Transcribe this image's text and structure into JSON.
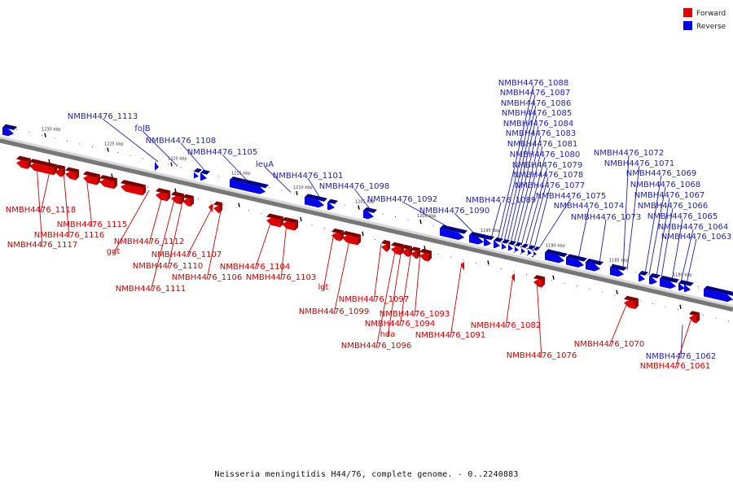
{
  "caption": "Neisseria meningitidis H44/76, complete genome. - 0..2240883",
  "colors": {
    "forward": "#e00000",
    "reverse": "#0000ee",
    "forward_text": "#cc0000",
    "reverse_text": "#1f1fb0"
  },
  "legend": {
    "forward": "Forward",
    "reverse": "Reverse"
  },
  "ticks": [
    {
      "label": "1230 kbp"
    },
    {
      "label": "1225 kbp"
    },
    {
      "label": "1220 kbp"
    },
    {
      "label": "1215 kbp"
    },
    {
      "label": "1210 kbp"
    },
    {
      "label": "1205 kbp"
    },
    {
      "label": "1200 kbp"
    },
    {
      "label": "1195 kbp"
    },
    {
      "label": "1190 kbp"
    },
    {
      "label": "1185 kbp"
    },
    {
      "label": "1180 kbp"
    }
  ],
  "reverse_genes": [
    "NMBH4476_1113",
    "folB",
    "NMBH4476_1108",
    "NMBH4476_1105",
    "leuA",
    "NMBH4476_1101",
    "NMBH4476_1098",
    "NMBH4476_1092",
    "NMBH4476_1090",
    "NMBH4476_1089",
    "NMBH4476_1088",
    "NMBH4476_1087",
    "NMBH4476_1086",
    "NMBH4476_1085",
    "NMBH4476_1084",
    "NMBH4476_1083",
    "NMBH4476_1081",
    "NMBH4476_1080",
    "NMBH4476_1079",
    "NMBH4476_1078",
    "NMBH4476_1077",
    "NMBH4476_1075",
    "NMBH4476_1074",
    "NMBH4476_1073",
    "NMBH4476_1072",
    "NMBH4476_1071",
    "NMBH4476_1069",
    "NMBH4476_1068",
    "NMBH4476_1067",
    "NMBH4476_1066",
    "NMBH4476_1065",
    "NMBH4476_1064",
    "NMBH4476_1063",
    "NMBH4476_1062"
  ],
  "forward_genes": [
    "NMBH4476_1118",
    "NMBH4476_1117",
    "NMBH4476_1116",
    "NMBH4476_1115",
    "NMBH4476_1112",
    "ggt",
    "NMBH4476_1111",
    "NMBH4476_1110",
    "NMBH4476_1107",
    "NMBH4476_1106",
    "NMBH4476_1104",
    "NMBH4476_1103",
    "lgt",
    "NMBH4476_1099",
    "NMBH4476_1097",
    "NMBH4476_1096",
    "hda",
    "NMBH4476_1094",
    "NMBH4476_1093",
    "NMBH4476_1091",
    "NMBH4476_1082",
    "NMBH4476_1076",
    "NMBH4476_1070",
    "NMBH4476_1061"
  ]
}
